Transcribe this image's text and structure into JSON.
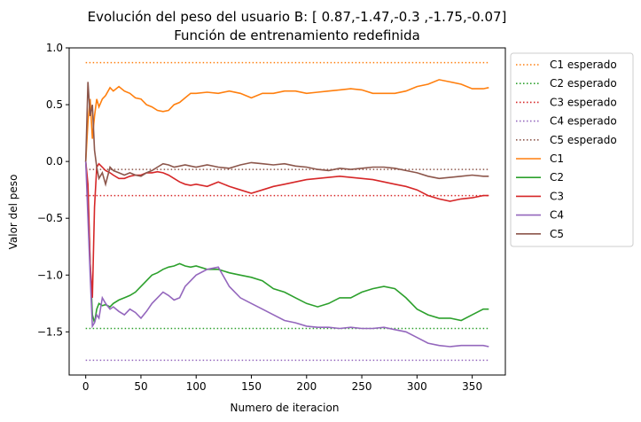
{
  "chart_data": {
    "type": "line",
    "title_line1": "Evolución del peso del usuario B: [ 0.87,-1.47,-0.3 ,-1.75,-0.07]",
    "title_line2": "Función de entrenamiento redefinida",
    "xlabel": "Numero de iteracion",
    "ylabel": "Valor del peso",
    "xlim": [
      -15,
      380
    ],
    "ylim": [
      -1.88,
      1.0
    ],
    "xticks": [
      0,
      50,
      100,
      150,
      200,
      250,
      300,
      350
    ],
    "yticks": [
      1.0,
      0.5,
      0.0,
      -0.5,
      -1.0,
      -1.5
    ],
    "xtick_labels": [
      "0",
      "50",
      "100",
      "150",
      "200",
      "250",
      "300",
      "350"
    ],
    "ytick_labels": [
      "1.0",
      "0.5",
      "0.0",
      "−0.5",
      "−1.0",
      "−1.5"
    ],
    "legend_position": "outside-right-top",
    "expected": [
      {
        "name": "C1 esperado",
        "value": 0.87,
        "color": "#ff7f0e"
      },
      {
        "name": "C2 esperado",
        "value": -1.47,
        "color": "#2ca02c"
      },
      {
        "name": "C3 esperado",
        "value": -0.3,
        "color": "#d62728"
      },
      {
        "name": "C4 esperado",
        "value": -1.75,
        "color": "#9467bd"
      },
      {
        "name": "C5 esperado",
        "value": -0.07,
        "color": "#8c564b"
      }
    ],
    "expected_x_range": [
      0,
      365
    ],
    "series": [
      {
        "name": "C1",
        "color": "#ff7f0e",
        "x": [
          0,
          2,
          4,
          6,
          8,
          10,
          12,
          15,
          18,
          22,
          25,
          30,
          35,
          40,
          45,
          50,
          55,
          60,
          65,
          70,
          75,
          80,
          85,
          90,
          95,
          100,
          110,
          120,
          130,
          140,
          150,
          160,
          170,
          180,
          190,
          200,
          210,
          220,
          230,
          240,
          250,
          260,
          270,
          280,
          290,
          300,
          310,
          320,
          330,
          340,
          350,
          360,
          365
        ],
        "y": [
          0.0,
          0.35,
          0.55,
          0.2,
          0.4,
          0.55,
          0.48,
          0.55,
          0.58,
          0.65,
          0.62,
          0.66,
          0.62,
          0.6,
          0.56,
          0.55,
          0.5,
          0.48,
          0.45,
          0.44,
          0.45,
          0.5,
          0.52,
          0.56,
          0.6,
          0.6,
          0.61,
          0.6,
          0.62,
          0.6,
          0.56,
          0.6,
          0.6,
          0.62,
          0.62,
          0.6,
          0.61,
          0.62,
          0.63,
          0.64,
          0.63,
          0.6,
          0.6,
          0.6,
          0.62,
          0.66,
          0.68,
          0.72,
          0.7,
          0.68,
          0.64,
          0.64,
          0.65
        ]
      },
      {
        "name": "C2",
        "color": "#2ca02c",
        "x": [
          0,
          2,
          4,
          6,
          8,
          10,
          12,
          15,
          18,
          22,
          25,
          30,
          35,
          40,
          45,
          50,
          55,
          60,
          65,
          70,
          75,
          80,
          85,
          90,
          95,
          100,
          110,
          120,
          130,
          140,
          150,
          160,
          170,
          180,
          190,
          200,
          210,
          220,
          230,
          240,
          250,
          260,
          270,
          280,
          290,
          300,
          310,
          320,
          330,
          340,
          350,
          360,
          365
        ],
        "y": [
          0.0,
          -0.3,
          -0.9,
          -1.35,
          -1.42,
          -1.3,
          -1.25,
          -1.27,
          -1.26,
          -1.28,
          -1.25,
          -1.22,
          -1.2,
          -1.18,
          -1.15,
          -1.1,
          -1.05,
          -1.0,
          -0.98,
          -0.95,
          -0.93,
          -0.92,
          -0.9,
          -0.92,
          -0.93,
          -0.92,
          -0.95,
          -0.95,
          -0.98,
          -1.0,
          -1.02,
          -1.05,
          -1.12,
          -1.15,
          -1.2,
          -1.25,
          -1.28,
          -1.25,
          -1.2,
          -1.2,
          -1.15,
          -1.12,
          -1.1,
          -1.12,
          -1.2,
          -1.3,
          -1.35,
          -1.38,
          -1.38,
          -1.4,
          -1.35,
          -1.3,
          -1.3
        ]
      },
      {
        "name": "C3",
        "color": "#d62728",
        "x": [
          0,
          2,
          4,
          6,
          8,
          10,
          12,
          15,
          18,
          22,
          25,
          30,
          35,
          40,
          45,
          50,
          55,
          60,
          65,
          70,
          75,
          80,
          85,
          90,
          95,
          100,
          110,
          120,
          130,
          140,
          150,
          160,
          170,
          180,
          190,
          200,
          210,
          220,
          230,
          240,
          250,
          260,
          270,
          280,
          290,
          300,
          310,
          320,
          330,
          340,
          350,
          360,
          365
        ],
        "y": [
          0.0,
          -0.2,
          -0.9,
          -1.2,
          -0.4,
          -0.05,
          -0.02,
          -0.05,
          -0.08,
          -0.1,
          -0.12,
          -0.15,
          -0.15,
          -0.13,
          -0.12,
          -0.12,
          -0.1,
          -0.1,
          -0.09,
          -0.1,
          -0.12,
          -0.15,
          -0.18,
          -0.2,
          -0.21,
          -0.2,
          -0.22,
          -0.18,
          -0.22,
          -0.25,
          -0.28,
          -0.25,
          -0.22,
          -0.2,
          -0.18,
          -0.16,
          -0.15,
          -0.14,
          -0.13,
          -0.14,
          -0.15,
          -0.16,
          -0.18,
          -0.2,
          -0.22,
          -0.25,
          -0.3,
          -0.33,
          -0.35,
          -0.33,
          -0.32,
          -0.3,
          -0.3
        ]
      },
      {
        "name": "C4",
        "color": "#9467bd",
        "x": [
          0,
          2,
          4,
          6,
          8,
          10,
          12,
          15,
          18,
          22,
          25,
          30,
          35,
          40,
          45,
          50,
          55,
          60,
          65,
          70,
          75,
          80,
          85,
          90,
          95,
          100,
          110,
          120,
          130,
          140,
          150,
          160,
          170,
          180,
          190,
          200,
          210,
          220,
          230,
          240,
          250,
          260,
          270,
          280,
          290,
          300,
          310,
          320,
          330,
          340,
          350,
          360,
          365
        ],
        "y": [
          0.0,
          -0.5,
          -1.0,
          -1.45,
          -1.42,
          -1.35,
          -1.38,
          -1.2,
          -1.25,
          -1.3,
          -1.28,
          -1.32,
          -1.35,
          -1.3,
          -1.33,
          -1.38,
          -1.32,
          -1.25,
          -1.2,
          -1.15,
          -1.18,
          -1.22,
          -1.2,
          -1.1,
          -1.05,
          -1.0,
          -0.95,
          -0.93,
          -1.1,
          -1.2,
          -1.25,
          -1.3,
          -1.35,
          -1.4,
          -1.42,
          -1.45,
          -1.46,
          -1.46,
          -1.47,
          -1.46,
          -1.47,
          -1.47,
          -1.46,
          -1.48,
          -1.5,
          -1.55,
          -1.6,
          -1.62,
          -1.63,
          -1.62,
          -1.62,
          -1.62,
          -1.63
        ]
      },
      {
        "name": "C5",
        "color": "#8c564b",
        "x": [
          0,
          2,
          4,
          6,
          8,
          10,
          12,
          15,
          18,
          22,
          25,
          30,
          35,
          40,
          45,
          50,
          55,
          60,
          65,
          70,
          75,
          80,
          85,
          90,
          95,
          100,
          110,
          120,
          130,
          140,
          150,
          160,
          170,
          180,
          190,
          200,
          210,
          220,
          230,
          240,
          250,
          260,
          270,
          280,
          290,
          300,
          310,
          320,
          330,
          340,
          350,
          360,
          365
        ],
        "y": [
          0.0,
          0.7,
          0.4,
          0.5,
          0.1,
          -0.05,
          -0.15,
          -0.1,
          -0.2,
          -0.05,
          -0.08,
          -0.1,
          -0.12,
          -0.1,
          -0.12,
          -0.13,
          -0.1,
          -0.08,
          -0.05,
          -0.02,
          -0.03,
          -0.05,
          -0.04,
          -0.03,
          -0.04,
          -0.05,
          -0.03,
          -0.05,
          -0.06,
          -0.03,
          -0.01,
          -0.02,
          -0.03,
          -0.02,
          -0.04,
          -0.05,
          -0.07,
          -0.08,
          -0.06,
          -0.07,
          -0.06,
          -0.05,
          -0.05,
          -0.06,
          -0.08,
          -0.1,
          -0.13,
          -0.15,
          -0.14,
          -0.13,
          -0.12,
          -0.13,
          -0.13
        ]
      }
    ]
  }
}
